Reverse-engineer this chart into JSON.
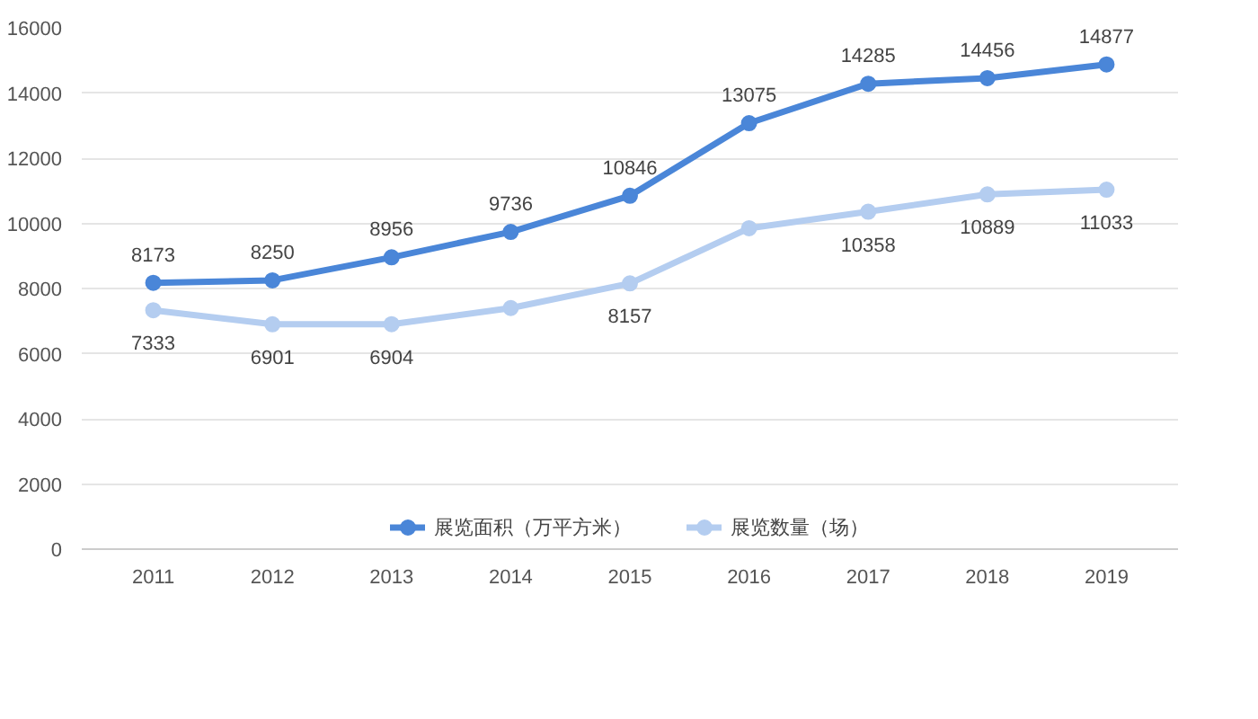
{
  "chart_data": {
    "type": "line",
    "categories": [
      "2011",
      "2012",
      "2013",
      "2014",
      "2015",
      "2016",
      "2017",
      "2018",
      "2019"
    ],
    "series": [
      {
        "name": "展览面积（万平方米）",
        "color": "#4a86d8",
        "values": [
          8173,
          8250,
          8956,
          9736,
          10846,
          13075,
          14285,
          14456,
          14877
        ],
        "value_labels": [
          "8173",
          "8250",
          "8956",
          "9736",
          "10846",
          "13075",
          "14285",
          "14456",
          "14877"
        ]
      },
      {
        "name": "展览数量（场）",
        "color": "#b4cdf0",
        "values": [
          7333,
          6901,
          6904,
          7400,
          8157,
          9850,
          10358,
          10889,
          11033
        ],
        "value_labels": [
          "7333",
          "6901",
          "6904",
          null,
          "8157",
          null,
          "10358",
          "10889",
          "11033"
        ]
      }
    ],
    "ylim": [
      0,
      16000
    ],
    "yticks": [
      0,
      2000,
      4000,
      6000,
      8000,
      10000,
      12000,
      14000,
      16000
    ],
    "grid": "y",
    "legend": "bottom",
    "marker": "circle",
    "line_style": "solid"
  }
}
